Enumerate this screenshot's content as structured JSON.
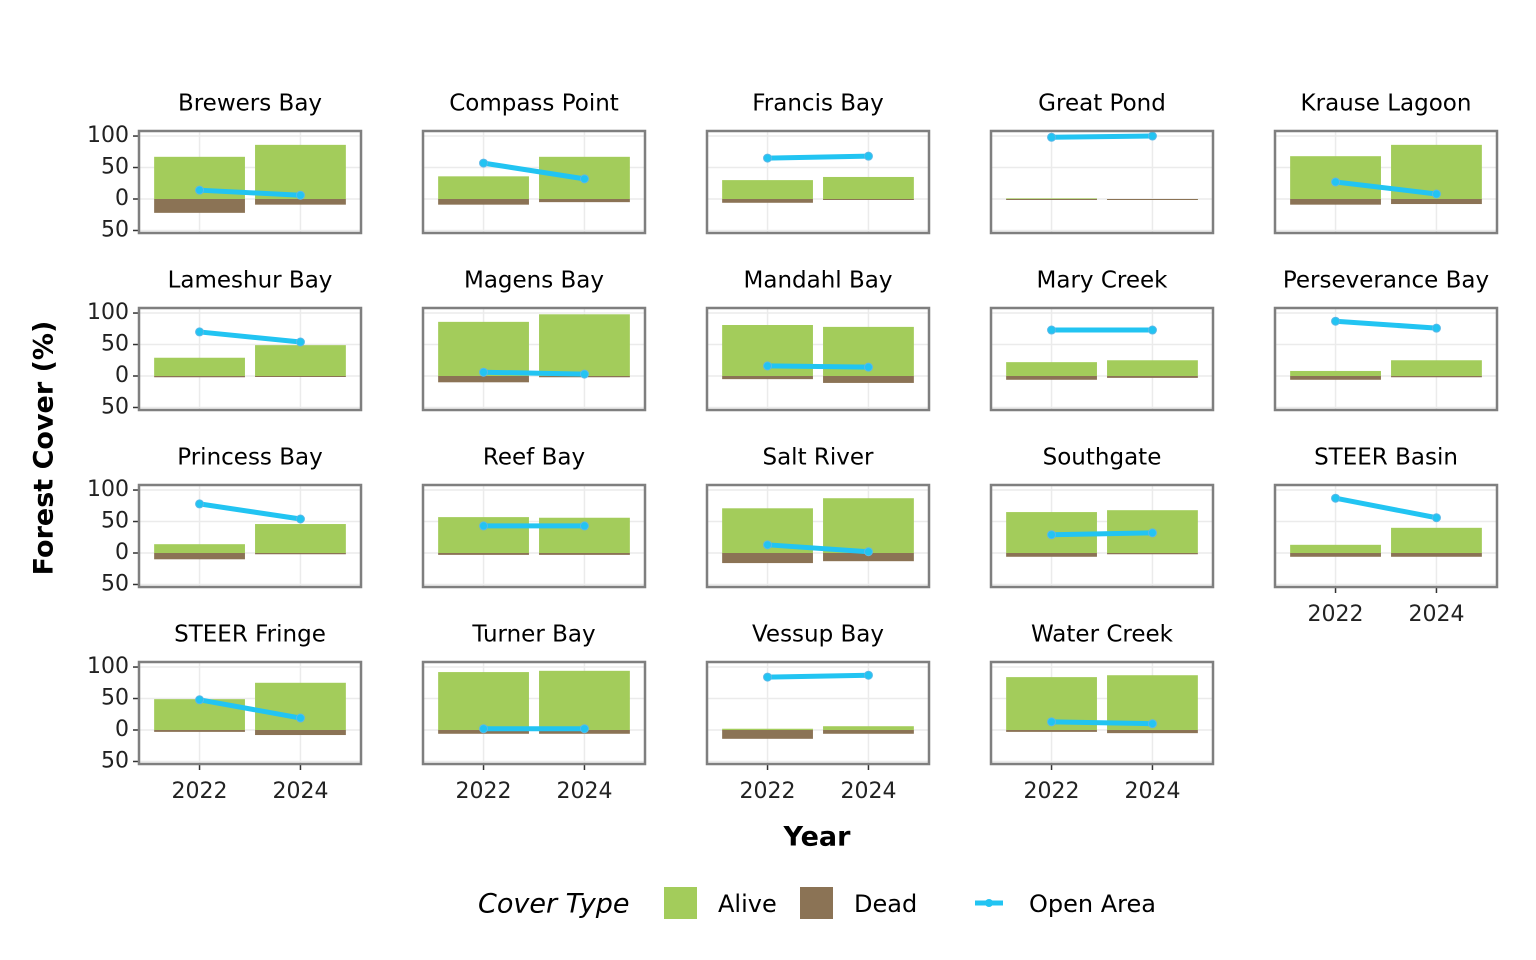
{
  "chart_data": {
    "type": "facet-grid",
    "ylabel": "Forest Cover (%)",
    "xlabel": "Year",
    "legend_title": "Cover Type",
    "grid": true,
    "x": [
      2022,
      2024
    ],
    "xlim": [
      2020.8,
      2025.2
    ],
    "xticks": [
      2022,
      2024
    ],
    "ylim": [
      -54,
      108
    ],
    "yticks": [
      {
        "value": -50,
        "label": "50"
      },
      0,
      50,
      100
    ],
    "series": [
      {
        "name": "Alive",
        "type": "bar",
        "color": "#a3cc5b"
      },
      {
        "name": "Dead",
        "type": "bar",
        "color": "#8b7355"
      },
      {
        "name": "Open Area",
        "type": "line",
        "color": "#22c4f2"
      }
    ],
    "facets": [
      {
        "title": "Brewers Bay",
        "series": [
          {
            "values": [
              67,
              86
            ]
          },
          {
            "values": [
              -22,
              -9
            ]
          },
          {
            "values": [
              14,
              6
            ]
          }
        ]
      },
      {
        "title": "Compass Point",
        "series": [
          {
            "values": [
              36,
              67
            ]
          },
          {
            "values": [
              -9,
              -5
            ]
          },
          {
            "values": [
              57,
              32
            ]
          }
        ]
      },
      {
        "title": "Francis Bay",
        "series": [
          {
            "values": [
              30,
              35
            ]
          },
          {
            "values": [
              -6,
              0
            ]
          },
          {
            "values": [
              65,
              68
            ]
          }
        ]
      },
      {
        "title": "Great Pond",
        "series": [
          {
            "values": [
              1,
              0
            ]
          },
          {
            "values": [
              0,
              0
            ]
          },
          {
            "values": [
              98,
              100
            ]
          }
        ]
      },
      {
        "title": "Krause Lagoon",
        "series": [
          {
            "values": [
              68,
              86
            ]
          },
          {
            "values": [
              -9,
              -8
            ]
          },
          {
            "values": [
              27,
              8
            ]
          }
        ]
      },
      {
        "title": "Lameshur Bay",
        "series": [
          {
            "values": [
              29,
              49
            ]
          },
          {
            "values": [
              -2,
              0
            ]
          },
          {
            "values": [
              70,
              54
            ]
          }
        ]
      },
      {
        "title": "Magens Bay",
        "series": [
          {
            "values": [
              86,
              98
            ]
          },
          {
            "values": [
              -10,
              -2
            ]
          },
          {
            "values": [
              6,
              3
            ]
          }
        ]
      },
      {
        "title": "Mandahl Bay",
        "series": [
          {
            "values": [
              81,
              78
            ]
          },
          {
            "values": [
              -5,
              -11
            ]
          },
          {
            "values": [
              16,
              14
            ]
          }
        ]
      },
      {
        "title": "Mary Creek",
        "series": [
          {
            "values": [
              22,
              25
            ]
          },
          {
            "values": [
              -6,
              -3
            ]
          },
          {
            "values": [
              73,
              73
            ]
          }
        ]
      },
      {
        "title": "Perseverance Bay",
        "series": [
          {
            "values": [
              8,
              25
            ]
          },
          {
            "values": [
              -6,
              -2
            ]
          },
          {
            "values": [
              87,
              76
            ]
          }
        ]
      },
      {
        "title": "Princess Bay",
        "series": [
          {
            "values": [
              14,
              46
            ]
          },
          {
            "values": [
              -10,
              -2
            ]
          },
          {
            "values": [
              78,
              54
            ]
          }
        ]
      },
      {
        "title": "Reef Bay",
        "series": [
          {
            "values": [
              57,
              56
            ]
          },
          {
            "values": [
              -3,
              -3
            ]
          },
          {
            "values": [
              43,
              43
            ]
          }
        ]
      },
      {
        "title": "Salt River",
        "series": [
          {
            "values": [
              71,
              87
            ]
          },
          {
            "values": [
              -16,
              -13
            ]
          },
          {
            "values": [
              13,
              2
            ]
          }
        ]
      },
      {
        "title": "Southgate",
        "series": [
          {
            "values": [
              65,
              68
            ]
          },
          {
            "values": [
              -6,
              -2
            ]
          },
          {
            "values": [
              29,
              32
            ]
          }
        ]
      },
      {
        "title": "STEER Basin",
        "series": [
          {
            "values": [
              13,
              40
            ]
          },
          {
            "values": [
              -6,
              -6
            ]
          },
          {
            "values": [
              87,
              56
            ]
          }
        ]
      },
      {
        "title": "STEER Fringe",
        "series": [
          {
            "values": [
              49,
              75
            ]
          },
          {
            "values": [
              -3,
              -8
            ]
          },
          {
            "values": [
              48,
              19
            ]
          }
        ]
      },
      {
        "title": "Turner Bay",
        "series": [
          {
            "values": [
              92,
              94
            ]
          },
          {
            "values": [
              -6,
              -6
            ]
          },
          {
            "values": [
              2,
              2
            ]
          }
        ]
      },
      {
        "title": "Vessup Bay",
        "series": [
          {
            "values": [
              2,
              6
            ]
          },
          {
            "values": [
              -14,
              -6
            ]
          },
          {
            "values": [
              84,
              87
            ]
          }
        ]
      },
      {
        "title": "Water Creek",
        "series": [
          {
            "values": [
              84,
              87
            ]
          },
          {
            "values": [
              -3,
              -5
            ]
          },
          {
            "values": [
              13,
              10
            ]
          }
        ]
      }
    ]
  }
}
